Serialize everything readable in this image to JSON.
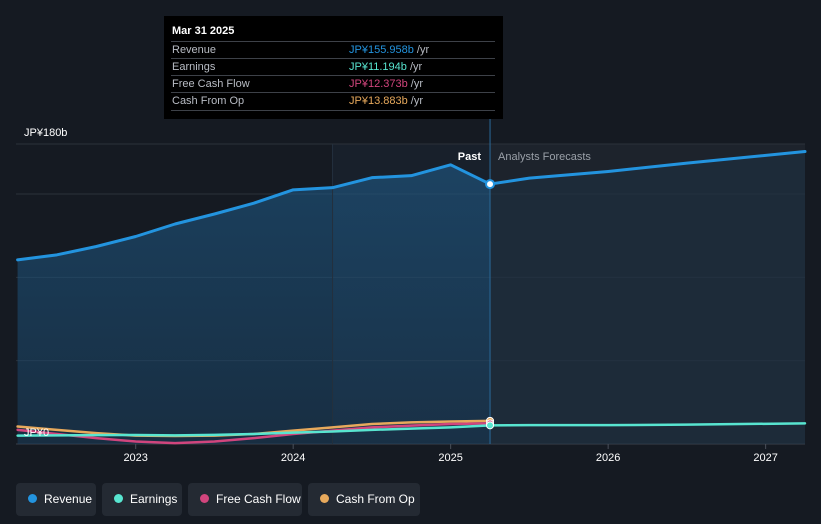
{
  "chart_data": {
    "type": "line",
    "title": "",
    "currency_prefix": "JP¥",
    "y_axis": {
      "labels": [
        "JP¥180b",
        "JP¥0"
      ],
      "ylim": [
        0,
        180
      ],
      "unit": "billions JPY"
    },
    "x_axis": {
      "tick_labels": [
        "2023",
        "2024",
        "2025",
        "2026",
        "2027"
      ],
      "tick_values": [
        2023,
        2024,
        2025,
        2026,
        2027
      ],
      "xlim": [
        2022.24,
        2027.25
      ]
    },
    "divider_x": 2025.25,
    "highlight_start_x": 2024.25,
    "past_label": "Past",
    "forecast_label": "Analysts Forecasts",
    "series": [
      {
        "name": "Revenue",
        "color": "#2394df",
        "x": [
          2022.25,
          2022.5,
          2022.75,
          2023.0,
          2023.25,
          2023.5,
          2023.75,
          2024.0,
          2024.25,
          2024.5,
          2024.75,
          2025.0,
          2025.25,
          2025.5,
          2026.0,
          2026.5,
          2027.25
        ],
        "y": [
          110.5,
          113.5,
          118.5,
          124.5,
          132.0,
          138.0,
          144.5,
          152.5,
          153.8,
          159.8,
          161.0,
          167.5,
          155.958,
          159.5,
          163.5,
          168.5,
          175.5
        ],
        "forecast_from_index": 12
      },
      {
        "name": "Earnings",
        "color": "#58e5d0",
        "x": [
          2022.25,
          2022.5,
          2022.75,
          2023.0,
          2023.25,
          2023.5,
          2023.75,
          2024.0,
          2024.25,
          2024.5,
          2024.75,
          2025.0,
          2025.25,
          2025.5,
          2026.0,
          2026.5,
          2027.25
        ],
        "y": [
          5.0,
          5.2,
          5.3,
          5.4,
          5.2,
          5.5,
          6.0,
          6.8,
          7.5,
          8.5,
          9.2,
          10.0,
          11.194,
          11.3,
          11.3,
          11.6,
          12.4
        ],
        "forecast_from_index": 12
      },
      {
        "name": "Free Cash Flow",
        "color": "#d1457d",
        "x": [
          2022.25,
          2022.5,
          2022.75,
          2023.0,
          2023.25,
          2023.5,
          2023.75,
          2024.0,
          2024.25,
          2024.5,
          2024.75,
          2025.0,
          2025.25
        ],
        "y": [
          8.5,
          6.0,
          3.5,
          1.5,
          0.5,
          1.5,
          3.5,
          6.0,
          8.0,
          10.0,
          11.0,
          12.0,
          12.373
        ]
      },
      {
        "name": "Cash From Op",
        "color": "#e7a95c",
        "x": [
          2022.25,
          2022.5,
          2022.75,
          2023.0,
          2023.25,
          2023.5,
          2023.75,
          2024.0,
          2024.25,
          2024.5,
          2024.75,
          2025.0,
          2025.25
        ],
        "y": [
          10.5,
          8.5,
          6.5,
          5.0,
          4.8,
          5.0,
          6.0,
          8.0,
          10.0,
          12.0,
          13.0,
          13.5,
          13.883
        ]
      }
    ]
  },
  "tooltip": {
    "date": "Mar 31 2025",
    "rows": [
      {
        "label": "Revenue",
        "value": "JP¥155.958b",
        "unit": " /yr",
        "color": "#2394df"
      },
      {
        "label": "Earnings",
        "value": "JP¥11.194b",
        "unit": " /yr",
        "color": "#58e5d0"
      },
      {
        "label": "Free Cash Flow",
        "value": "JP¥12.373b",
        "unit": " /yr",
        "color": "#d1457d"
      },
      {
        "label": "Cash From Op",
        "value": "JP¥13.883b",
        "unit": " /yr",
        "color": "#e7a95c"
      }
    ]
  },
  "legend": [
    {
      "label": "Revenue",
      "color": "#2394df"
    },
    {
      "label": "Earnings",
      "color": "#58e5d0"
    },
    {
      "label": "Free Cash Flow",
      "color": "#d1457d"
    },
    {
      "label": "Cash From Op",
      "color": "#e7a95c"
    }
  ]
}
